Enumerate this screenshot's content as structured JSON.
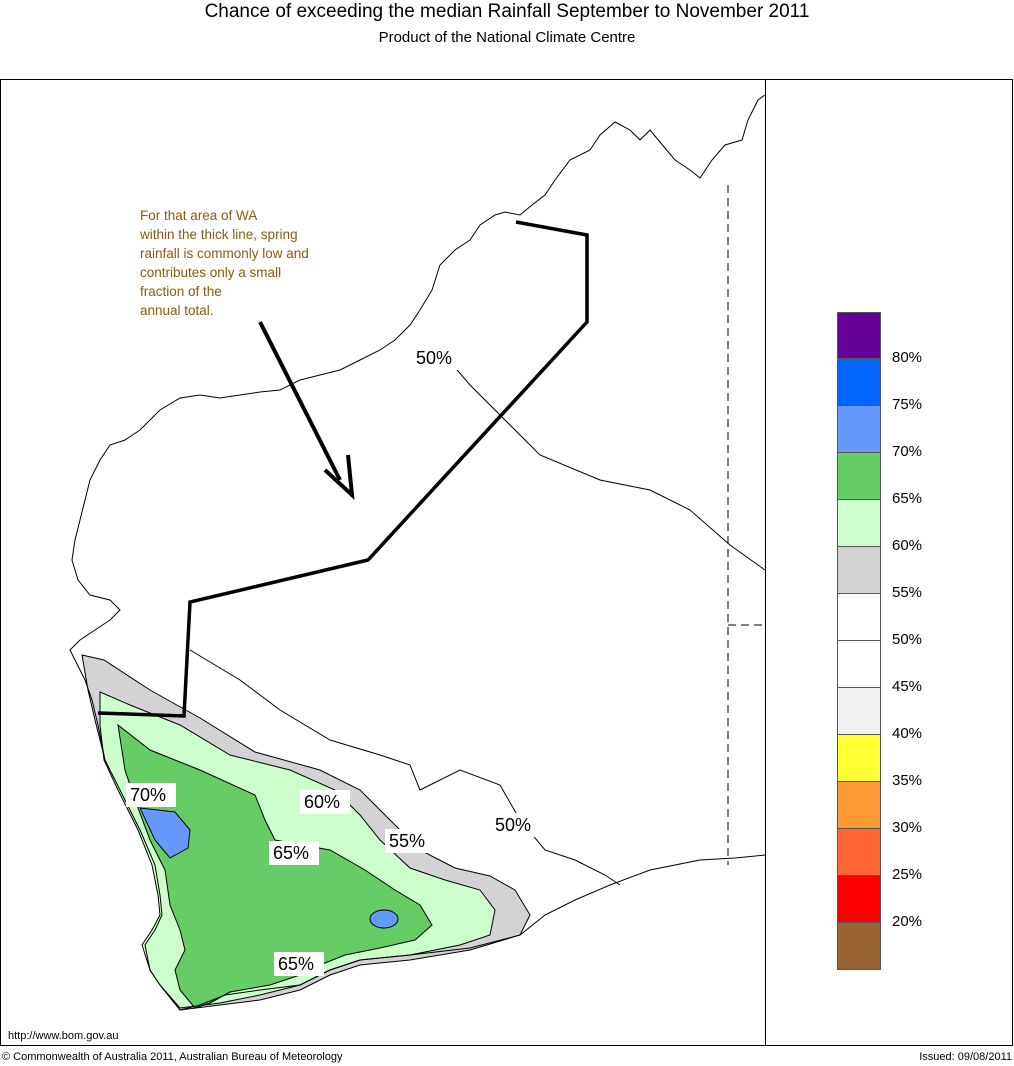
{
  "header": {
    "title": "Chance of exceeding the median Rainfall September to November 2011",
    "subtitle": "Product of the National Climate Centre"
  },
  "annotation": {
    "text": "For that area of WA\nwithin the thick line, spring\nrainfall is commonly low and\ncontributes only a small\nfraction of the\nannual total."
  },
  "contour_labels": [
    "50%",
    "50%",
    "55%",
    "60%",
    "65%",
    "65%",
    "70%"
  ],
  "legend": {
    "swatch_colors": [
      "#660099",
      "#0066ff",
      "#6699ff",
      "#66cc66",
      "#ccffcc",
      "#d3d3d3",
      "#ffffff",
      "#ffffff",
      "#f0f0f0",
      "#ffff33",
      "#ff9933",
      "#ff6633",
      "#ff0000",
      "#996633"
    ],
    "labels": [
      "80%",
      "75%",
      "70%",
      "65%",
      "60%",
      "55%",
      "50%",
      "45%",
      "40%",
      "35%",
      "30%",
      "25%",
      "20%"
    ]
  },
  "footer": {
    "url": "http://www.bom.gov.au",
    "copyright": "© Commonwealth of Australia 2011, Australian Bureau of Meteorology",
    "issued": "Issued: 09/08/2011"
  }
}
